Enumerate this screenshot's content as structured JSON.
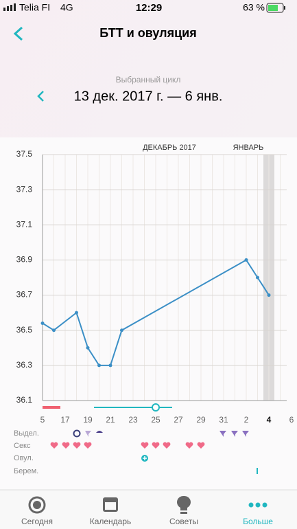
{
  "status_bar": {
    "carrier": "Telia FI",
    "network": "4G",
    "time": "12:29",
    "battery": "63 %"
  },
  "header": {
    "title": "БТТ и овуляция"
  },
  "cycle": {
    "caption": "Выбранный цикл",
    "range": "13 дек. 2017 г. — 6 янв."
  },
  "chart_data": {
    "type": "line",
    "month_labels": [
      "ДЕКАБРЬ 2017",
      "ЯНВАРЬ"
    ],
    "x": [
      15,
      16,
      18,
      19,
      20,
      21,
      22,
      33,
      34,
      35
    ],
    "series": [
      {
        "color": "#3b8fc6",
        "values": [
          36.54,
          36.5,
          36.6,
          36.4,
          36.3,
          36.3,
          36.5,
          36.9,
          36.8,
          36.7
        ]
      }
    ],
    "xlim": [
      15,
      37
    ],
    "xticks": [
      {
        "value": 15,
        "label": "5"
      },
      17,
      19,
      21,
      23,
      25,
      27,
      29,
      31,
      {
        "value": 33,
        "label": "2"
      },
      {
        "value": 35,
        "label": "4"
      },
      {
        "value": 37,
        "label": "6"
      }
    ],
    "ylim": [
      36.1,
      37.5
    ],
    "yticks": [
      36.1,
      36.3,
      36.5,
      36.7,
      36.9,
      37.1,
      37.3,
      37.5
    ],
    "grid": true,
    "highlight_x": 35
  },
  "rows": [
    "Выдел.",
    "Секс",
    "Овул.",
    "Берем."
  ],
  "tabs": [
    "Сегодня",
    "Календарь",
    "Советы",
    "Больше"
  ]
}
